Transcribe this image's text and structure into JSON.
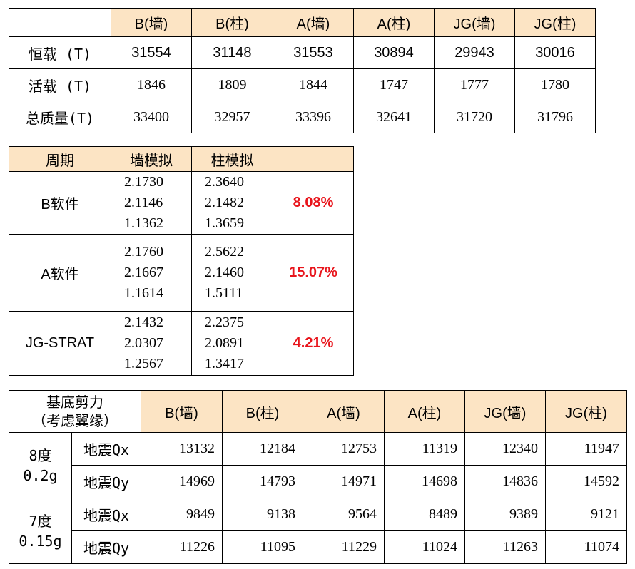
{
  "table1": {
    "headers": [
      "B(墙)",
      "B(柱)",
      "A(墙)",
      "A(柱)",
      "JG(墙)",
      "JG(柱)"
    ],
    "rows": [
      {
        "label": "恒载 (T)",
        "values": [
          "31554",
          "31148",
          "31553",
          "30894",
          "29943",
          "30016"
        ]
      },
      {
        "label": "活载 (T)",
        "values": [
          "1846",
          "1809",
          "1844",
          "1747",
          "1777",
          "1780"
        ]
      },
      {
        "label": "总质量(T)",
        "values": [
          "33400",
          "32957",
          "33396",
          "32641",
          "31720",
          "31796"
        ]
      }
    ]
  },
  "table2": {
    "headers": [
      "周期",
      "墙模拟",
      "柱模拟",
      ""
    ],
    "rows": [
      {
        "label": "B软件",
        "wall": [
          "2.1730",
          "2.1146",
          "1.1362"
        ],
        "column": [
          "2.3640",
          "2.1482",
          "1.3659"
        ],
        "diff": "8.08%"
      },
      {
        "label": "A软件",
        "wall": [
          "2.1760",
          "2.1667",
          "1.1614"
        ],
        "column": [
          "2.5622",
          "2.1460",
          "1.5111"
        ],
        "diff": "15.07%"
      },
      {
        "label": "JG-STRAT",
        "wall": [
          "2.1432",
          "2.0307",
          "1.2567"
        ],
        "column": [
          "2.2375",
          "2.0891",
          "1.3417"
        ],
        "diff": "4.21%"
      }
    ]
  },
  "table3": {
    "corner": [
      "基底剪力",
      "（考虑翼缘）"
    ],
    "headers": [
      "B(墙)",
      "B(柱)",
      "A(墙)",
      "A(柱)",
      "JG(墙)",
      "JG(柱)"
    ],
    "groups": [
      {
        "label": [
          "8度",
          "0.2g"
        ],
        "rows": [
          {
            "label": "地震Qx",
            "values": [
              "13132",
              "12184",
              "12753",
              "11319",
              "12340",
              "11947"
            ]
          },
          {
            "label": "地震Qy",
            "values": [
              "14969",
              "14793",
              "14971",
              "14698",
              "14836",
              "14592"
            ]
          }
        ]
      },
      {
        "label": [
          "7度",
          "0.15g"
        ],
        "rows": [
          {
            "label": "地震Qx",
            "values": [
              "9849",
              "9138",
              "9564",
              "8489",
              "9389",
              "9121"
            ]
          },
          {
            "label": "地震Qy",
            "values": [
              "11226",
              "11095",
              "11229",
              "11024",
              "11263",
              "11074"
            ]
          }
        ]
      }
    ]
  },
  "colors": {
    "header_fill": "#FCE4C4",
    "highlight_text": "#E8141B",
    "border": "#000000"
  }
}
